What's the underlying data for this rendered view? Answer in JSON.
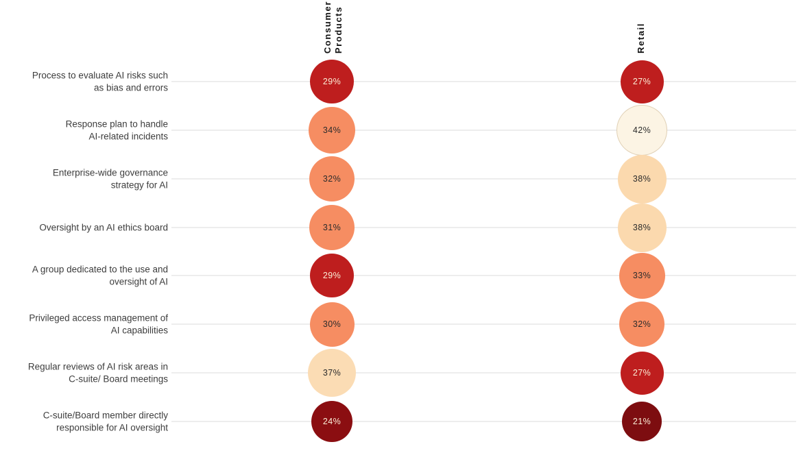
{
  "chart_data": {
    "type": "heatmap",
    "title": "",
    "value_suffix": "%",
    "legend_position": "none",
    "grid": "horizontal-row-lines",
    "bubble_size_scales_with_value": true,
    "columns": [
      {
        "id": "consumer-products",
        "label": "Consumer\nProducts"
      },
      {
        "id": "retail",
        "label": "Retail"
      }
    ],
    "rows": [
      {
        "label": "Process to evaluate AI risks such\nas bias and errors",
        "cells": [
          {
            "value": 29,
            "display": "29%",
            "color": "#BE1E1E"
          },
          {
            "value": 27,
            "display": "27%",
            "color": "#BE1E1E"
          }
        ]
      },
      {
        "label": "Response plan to handle\nAI-related incidents",
        "cells": [
          {
            "value": 34,
            "display": "34%",
            "color": "#F68D62"
          },
          {
            "value": 42,
            "display": "42%",
            "color": "#FCF4E4"
          }
        ]
      },
      {
        "label": "Enterprise-wide governance\nstrategy for AI",
        "cells": [
          {
            "value": 32,
            "display": "32%",
            "color": "#F68D62"
          },
          {
            "value": 38,
            "display": "38%",
            "color": "#FBD9AE"
          }
        ]
      },
      {
        "label": "Oversight by an AI ethics board",
        "cells": [
          {
            "value": 31,
            "display": "31%",
            "color": "#F68D62"
          },
          {
            "value": 38,
            "display": "38%",
            "color": "#FBD9AE"
          }
        ]
      },
      {
        "label": "A group dedicated to the use and\noversight of AI",
        "cells": [
          {
            "value": 29,
            "display": "29%",
            "color": "#BE1E1E"
          },
          {
            "value": 33,
            "display": "33%",
            "color": "#F68D62"
          }
        ]
      },
      {
        "label": "Privileged access management of\nAI capabilities",
        "cells": [
          {
            "value": 30,
            "display": "30%",
            "color": "#F68D62"
          },
          {
            "value": 32,
            "display": "32%",
            "color": "#F68D62"
          }
        ]
      },
      {
        "label": "Regular reviews of AI risk areas in\nC-suite/ Board meetings",
        "cells": [
          {
            "value": 37,
            "display": "37%",
            "color": "#FBDCB4"
          },
          {
            "value": 27,
            "display": "27%",
            "color": "#BE1E1E"
          }
        ]
      },
      {
        "label": "C-suite/Board member directly\nresponsible for AI oversight",
        "cells": [
          {
            "value": 24,
            "display": "24%",
            "color": "#8B0E11"
          },
          {
            "value": 21,
            "display": "21%",
            "color": "#7D0D10"
          }
        ]
      }
    ],
    "colors": {
      "scale_darkest": "#7D0D10",
      "scale_dark_red": "#BE1E1E",
      "scale_orange": "#F68D62",
      "scale_light_peach": "#FBD9AE",
      "scale_cream": "#FCF4E4",
      "gridline": "#EDEDED",
      "row_label_text": "#3D3D3D",
      "header_text": "#111111"
    }
  }
}
